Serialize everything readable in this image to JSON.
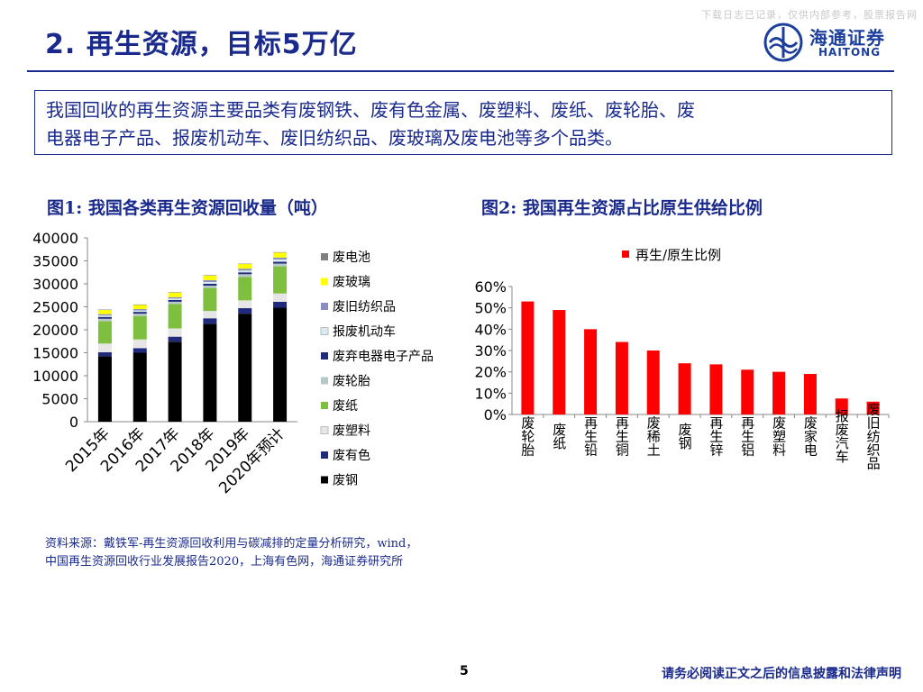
{
  "watermark": "下载日志已记录，仅供内部参考，股票报告网",
  "header": {
    "title": "2. 再生资源，目标5万亿",
    "logo_cn": "海通证券",
    "logo_en": "HAITONG"
  },
  "summary": {
    "line1": "我国回收的再生资源主要品类有废钢铁、废有色金属、废塑料、废纸、废轮胎、废",
    "line2": "电器电子产品、报废机动车、废旧纺织品、废玻璃及废电池等多个品类。"
  },
  "figures": {
    "fig1_title": "图1:  我国各类再生资源回收量（吨）",
    "fig2_title": "图2:  我国再生资源占比原生供给比例"
  },
  "chart_data": [
    {
      "type": "bar",
      "stacked": true,
      "title": "图1:  我国各类再生资源回收量（吨）",
      "categories": [
        "2015年",
        "2016年",
        "2017年",
        "2018年",
        "2019年",
        "2020年预计"
      ],
      "ylim": [
        0,
        40000
      ],
      "yticks": [
        0,
        5000,
        10000,
        15000,
        20000,
        25000,
        30000,
        35000,
        40000
      ],
      "legend_position": "right",
      "series": [
        {
          "name": "废钢",
          "color": "#000000",
          "values": [
            14200,
            15000,
            17400,
            21300,
            23500,
            24800
          ]
        },
        {
          "name": "废有色",
          "color": "#1f2a7a",
          "values": [
            900,
            1000,
            1100,
            1200,
            1200,
            1300
          ]
        },
        {
          "name": "废塑料",
          "color": "#e6e6e6",
          "values": [
            1900,
            1900,
            1800,
            1600,
            1700,
            1800
          ]
        },
        {
          "name": "废纸",
          "color": "#7fbf3f",
          "values": [
            4900,
            5100,
            5300,
            5000,
            5100,
            5900
          ]
        },
        {
          "name": "废轮胎",
          "color": "#b8c8c8",
          "values": [
            500,
            500,
            500,
            500,
            600,
            600
          ]
        },
        {
          "name": "废弃电器电子产品",
          "color": "#1f2a7a",
          "values": [
            400,
            400,
            400,
            400,
            400,
            400
          ]
        },
        {
          "name": "报废机动车",
          "color": "#d8ecf0",
          "values": [
            300,
            300,
            300,
            400,
            400,
            500
          ]
        },
        {
          "name": "废旧纺织品",
          "color": "#8a8fc0",
          "values": [
            300,
            300,
            300,
            400,
            400,
            400
          ]
        },
        {
          "name": "废玻璃",
          "color": "#ffff00",
          "values": [
            900,
            900,
            1000,
            1000,
            1000,
            1100
          ]
        },
        {
          "name": "废电池",
          "color": "#808080",
          "values": [
            100,
            100,
            100,
            100,
            100,
            100
          ]
        }
      ]
    },
    {
      "type": "bar",
      "title": "图2:  我国再生资源占比原生供给比例",
      "legend": "再生/原生比例",
      "color": "#ff0000",
      "categories": [
        "废轮胎",
        "废纸",
        "再生铅",
        "再生铜",
        "废稀土",
        "废钢",
        "再生锌",
        "再生铝",
        "废塑料",
        "废家电",
        "报废汽车",
        "废旧纺织品"
      ],
      "values": [
        53,
        49,
        40,
        34,
        30,
        24,
        23.5,
        21,
        20,
        19,
        7.5,
        6
      ],
      "unit": "%",
      "ylim": [
        0,
        60
      ],
      "yticks": [
        0,
        10,
        20,
        30,
        40,
        50,
        60
      ]
    }
  ],
  "source": {
    "line1": "资料来源：戴铁军-再生资源回收利用与碳减排的定量分析研究，wind，",
    "line2": "中国再生资源回收行业发展报告2020，上海有色网，海通证券研究所"
  },
  "footer": {
    "page": "5",
    "disclaimer": "请务必阅读正文之后的信息披露和法律声明"
  }
}
